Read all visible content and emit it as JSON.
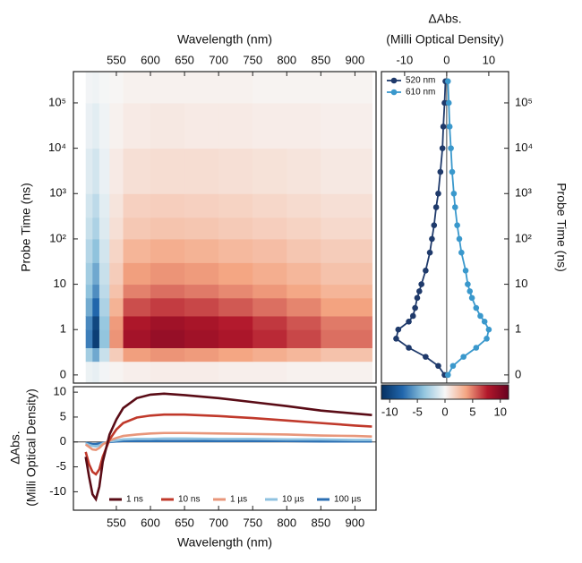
{
  "chart_data": [
    {
      "type": "heatmap",
      "xlabel": "Wavelength (nm)",
      "ylabel": "Probe Time (ns)",
      "xlim": [
        487,
        931
      ],
      "xticks": [
        550,
        600,
        650,
        700,
        750,
        800,
        850,
        900
      ],
      "ylim": [
        -0.18,
        490000
      ],
      "yscale": "symlog",
      "yticks": [
        0,
        1,
        10,
        {
          "value": 100,
          "label": "10²"
        },
        {
          "value": 1000,
          "label": "10³"
        },
        {
          "value": 10000,
          "label": "10⁴"
        },
        {
          "value": 100000,
          "label": "10⁵"
        }
      ],
      "xbins": [
        505,
        515,
        525,
        540,
        560,
        600,
        650,
        700,
        750,
        800,
        850,
        925
      ],
      "ybins": [
        -0.18,
        0.3,
        0.6,
        1,
        2,
        5,
        10,
        30,
        100,
        300,
        1000,
        10000,
        100000,
        490000
      ],
      "z": [
        [
          -0.4,
          -0.6,
          -0.2,
          0.2,
          0.4,
          0.5,
          0.5,
          0.4,
          0.4,
          0.3,
          0.3
        ],
        [
          -3.2,
          -5,
          -1.8,
          2,
          4,
          4.3,
          4.1,
          3.8,
          3.4,
          3,
          2.5
        ],
        [
          -6.7,
          -10.5,
          -3.8,
          4.3,
          8.4,
          9.1,
          8.6,
          8,
          7.2,
          6.4,
          5.3
        ],
        [
          -6.3,
          -9.9,
          -3.6,
          4.1,
          7.9,
          8.6,
          8.2,
          7.6,
          6.8,
          6,
          5
        ],
        [
          -4.9,
          -7.7,
          -2.8,
          3.2,
          6.2,
          6.7,
          6.4,
          5.9,
          5.3,
          4.7,
          3.9
        ],
        [
          -3.9,
          -6.1,
          -2.2,
          2.5,
          4.8,
          5.3,
          5,
          4.6,
          4.2,
          3.7,
          3.1
        ],
        [
          -3.2,
          -5,
          -1.8,
          2,
          4,
          4.3,
          4.1,
          3.8,
          3.4,
          3,
          2.5
        ],
        [
          -2.5,
          -3.9,
          -1.4,
          1.6,
          3.1,
          3.4,
          3.2,
          2.9,
          2.7,
          2.3,
          2
        ],
        [
          -1.8,
          -2.8,
          -1,
          1.1,
          2.2,
          2.4,
          2.3,
          2.1,
          1.9,
          1.7,
          1.4
        ],
        [
          -1.4,
          -2.2,
          -0.8,
          0.9,
          1.8,
          1.9,
          1.8,
          1.7,
          1.5,
          1.3,
          1.1
        ],
        [
          -0.9,
          -1.4,
          -0.5,
          0.6,
          1.1,
          1.2,
          1.2,
          1.1,
          1,
          0.9,
          0.7
        ],
        [
          -0.5,
          -0.8,
          -0.3,
          0.3,
          0.6,
          0.7,
          0.6,
          0.6,
          0.5,
          0.5,
          0.4
        ],
        [
          -0.2,
          -0.3,
          -0.1,
          0.1,
          0.3,
          0.3,
          0.3,
          0.3,
          0.2,
          0.2,
          0.2
        ]
      ],
      "colorscale": [
        "#053061",
        "#2166ac",
        "#92c5de",
        "#f7f7f7",
        "#f4a582",
        "#b2182b",
        "#67001f"
      ],
      "clim": [
        -11.5,
        11.5
      ],
      "cticks": [
        -10,
        -5,
        0,
        5,
        10
      ]
    },
    {
      "type": "line",
      "orientation": "horizontal",
      "xlabel_lines": [
        "ΔAbs.",
        "(Milli Optical Density)"
      ],
      "ylabel": "Probe Time (ns)",
      "xlim": [
        -15.5,
        14.7
      ],
      "xticks": [
        -10,
        0,
        10
      ],
      "ylim": [
        -0.18,
        490000
      ],
      "yscale": "symlog",
      "yticks": [
        0,
        1,
        10,
        {
          "value": 100,
          "label": "10²"
        },
        {
          "value": 1000,
          "label": "10³"
        },
        {
          "value": 10000,
          "label": "10⁴"
        },
        {
          "value": 100000,
          "label": "10⁵"
        }
      ],
      "y": [
        0,
        0.2,
        0.4,
        0.6,
        0.8,
        1,
        1.5,
        2,
        3,
        5,
        7,
        10,
        20,
        50,
        100,
        200,
        500,
        1000,
        3000,
        10000,
        30000,
        100000,
        300000
      ],
      "series": [
        {
          "name": "520 nm",
          "color": "#1f3a6b",
          "values": [
            -0.5,
            -2,
            -5,
            -9,
            -12,
            -11.5,
            -9,
            -8,
            -7.5,
            -7,
            -6.5,
            -6,
            -5,
            -4,
            -3.5,
            -3,
            -2.5,
            -2,
            -1.5,
            -1,
            -0.8,
            -0.5,
            -0.3
          ]
        },
        {
          "name": "610 nm",
          "color": "#3a98cc",
          "values": [
            0.3,
            1.5,
            4,
            7,
            9.5,
            10,
            9,
            8,
            7,
            6,
            5.5,
            5,
            4.5,
            3.5,
            3,
            2.5,
            2,
            1.7,
            1.3,
            1,
            0.7,
            0.5,
            0.3
          ]
        }
      ],
      "legend": "upper left"
    },
    {
      "type": "line",
      "xlabel": "Wavelength (nm)",
      "ylabel_lines": [
        "ΔAbs.",
        "(Milli Optical Density)"
      ],
      "xlim": [
        487,
        931
      ],
      "xticks": [
        550,
        600,
        650,
        700,
        750,
        800,
        850,
        900
      ],
      "ylim": [
        -13.7,
        11.1
      ],
      "yticks": [
        -10,
        -5,
        0,
        5,
        10
      ],
      "x": [
        505,
        510,
        515,
        520,
        525,
        530,
        540,
        550,
        560,
        580,
        600,
        620,
        650,
        700,
        750,
        800,
        850,
        900,
        925
      ],
      "series": [
        {
          "name": "1 ns",
          "color": "#5a0c16",
          "values": [
            -3,
            -7,
            -10.5,
            -11.5,
            -9,
            -4,
            1.5,
            4.5,
            6.8,
            8.8,
            9.5,
            9.7,
            9.4,
            8.8,
            8,
            7.2,
            6.3,
            5.7,
            5.4
          ]
        },
        {
          "name": "10 ns",
          "color": "#c0392b",
          "values": [
            -2,
            -4.5,
            -6,
            -6.5,
            -5.5,
            -3,
            0.5,
            2.5,
            3.8,
            4.9,
            5.3,
            5.5,
            5.5,
            5.2,
            4.8,
            4.3,
            3.8,
            3.3,
            3.1
          ]
        },
        {
          "name": "1 µs",
          "color": "#e8967a",
          "values": [
            -0.5,
            -1,
            -1.5,
            -1.6,
            -1.2,
            -0.5,
            0.3,
            0.8,
            1.2,
            1.5,
            1.7,
            1.8,
            1.8,
            1.7,
            1.6,
            1.5,
            1.3,
            1.2,
            1.1
          ]
        },
        {
          "name": "10 µs",
          "color": "#8fc2e0",
          "values": [
            -0.3,
            -0.6,
            -0.8,
            -0.9,
            -0.7,
            -0.3,
            0.1,
            0.3,
            0.5,
            0.6,
            0.6,
            0.7,
            0.7,
            0.6,
            0.6,
            0.5,
            0.5,
            0.4,
            0.4
          ]
        },
        {
          "name": "100 µs",
          "color": "#2b6fb3",
          "values": [
            -0.2,
            -0.3,
            -0.4,
            -0.4,
            -0.3,
            -0.2,
            0,
            0.1,
            0.2,
            0.2,
            0.2,
            0.2,
            0.2,
            0.2,
            0.2,
            0.2,
            0.1,
            0.1,
            0.1
          ]
        }
      ],
      "legend": "lower right"
    }
  ]
}
